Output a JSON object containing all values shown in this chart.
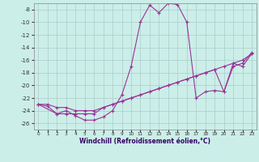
{
  "xlabel": "Windchill (Refroidissement éolien,°C)",
  "background_color": "#cceee8",
  "grid_color": "#aacccc",
  "line_color": "#993399",
  "xlim": [
    -0.5,
    23.5
  ],
  "ylim": [
    -27,
    -7
  ],
  "xticks": [
    0,
    1,
    2,
    3,
    4,
    5,
    6,
    7,
    8,
    9,
    10,
    11,
    12,
    13,
    14,
    15,
    16,
    17,
    18,
    19,
    20,
    21,
    22,
    23
  ],
  "yticks": [
    -26,
    -24,
    -22,
    -20,
    -18,
    -16,
    -14,
    -12,
    -10,
    -8
  ],
  "series1_x": [
    0,
    1,
    2,
    3,
    4,
    5,
    6,
    7,
    8,
    9,
    10,
    11,
    12,
    13,
    14,
    15,
    16,
    17,
    18,
    19,
    20,
    21,
    22,
    23
  ],
  "series1_y": [
    -23.0,
    -23.3,
    -24.5,
    -24.0,
    -24.8,
    -25.5,
    -25.5,
    -25.0,
    -24.0,
    -21.5,
    -17.0,
    -10.0,
    -7.3,
    -8.5,
    -7.0,
    -7.2,
    -10.0,
    -22.0,
    -21.0,
    -20.8,
    -21.0,
    -17.0,
    -16.5,
    -14.8
  ],
  "series2_x": [
    0,
    2,
    3,
    4,
    5,
    6,
    7,
    8,
    9,
    10,
    11,
    12,
    13,
    14,
    15,
    16,
    17,
    18,
    19,
    20,
    21,
    22,
    23
  ],
  "series2_y": [
    -23.0,
    -24.5,
    -24.5,
    -24.5,
    -24.5,
    -24.5,
    -23.5,
    -23.0,
    -22.5,
    -22.0,
    -21.5,
    -21.0,
    -20.5,
    -20.0,
    -19.5,
    -19.0,
    -18.5,
    -18.0,
    -17.5,
    -21.0,
    -16.5,
    -17.0,
    -15.0
  ],
  "series3_x": [
    0,
    1,
    2,
    3,
    4,
    5,
    6,
    7,
    8,
    9,
    10,
    11,
    12,
    13,
    14,
    15,
    16,
    17,
    18,
    19,
    20,
    21,
    22,
    23
  ],
  "series3_y": [
    -23.0,
    -23.0,
    -23.5,
    -23.5,
    -24.0,
    -24.0,
    -24.0,
    -23.5,
    -23.0,
    -22.5,
    -22.0,
    -21.5,
    -21.0,
    -20.5,
    -20.0,
    -19.5,
    -19.0,
    -18.5,
    -18.0,
    -17.5,
    -17.0,
    -16.5,
    -16.0,
    -15.0
  ]
}
